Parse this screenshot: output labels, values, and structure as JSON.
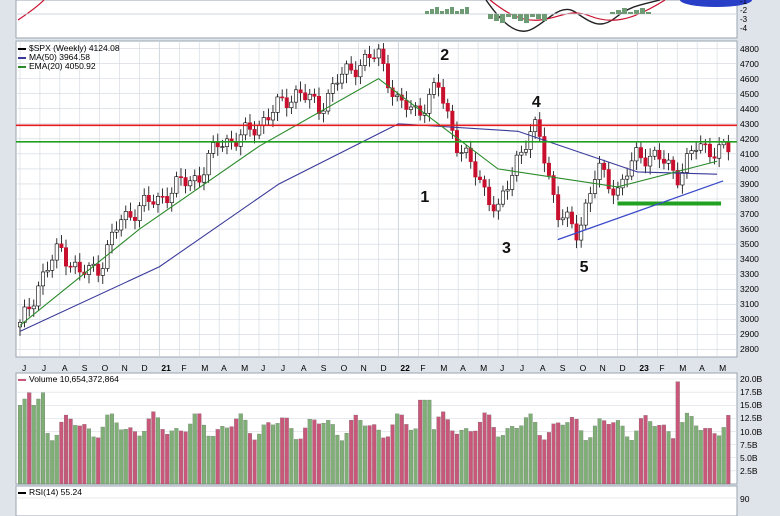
{
  "colors": {
    "background": "#dfe4ea",
    "panel": "#ffffff",
    "grid": "#cfd6de",
    "up": "#4a8a44",
    "down": "#c8102e",
    "ma50": "#3a3a9a",
    "ema20": "#2a8a2a",
    "resistance": "#e41a1c",
    "support_line": "#22a022",
    "trend_line": "#3a4ac8",
    "volume_up": "#7fae76",
    "volume_down": "#c7587a"
  },
  "price_panel": {
    "legend": {
      "symbol": "$SPX (Weekly) 4124.08",
      "ma50": "MA(50) 3964.58",
      "ema20": "EMA(20) 4050.92"
    },
    "y_ticks": [
      "4800",
      "4700",
      "4600",
      "4500",
      "4400",
      "4300",
      "4200",
      "4100",
      "4000",
      "3900",
      "3800",
      "3700",
      "3600",
      "3500",
      "3400",
      "3300",
      "3200",
      "3100",
      "3000",
      "2900",
      "2800"
    ],
    "wave_labels": [
      "1",
      "2",
      "3",
      "4",
      "5"
    ]
  },
  "x_axis": {
    "ticks": [
      {
        "label": "J",
        "year": false
      },
      {
        "label": "J",
        "year": false
      },
      {
        "label": "A",
        "year": false
      },
      {
        "label": "S",
        "year": false
      },
      {
        "label": "O",
        "year": false
      },
      {
        "label": "N",
        "year": false
      },
      {
        "label": "D",
        "year": false
      },
      {
        "label": "21",
        "year": true
      },
      {
        "label": "F",
        "year": false
      },
      {
        "label": "M",
        "year": false
      },
      {
        "label": "A",
        "year": false
      },
      {
        "label": "M",
        "year": false
      },
      {
        "label": "J",
        "year": false
      },
      {
        "label": "J",
        "year": false
      },
      {
        "label": "A",
        "year": false
      },
      {
        "label": "S",
        "year": false
      },
      {
        "label": "O",
        "year": false
      },
      {
        "label": "N",
        "year": false
      },
      {
        "label": "D",
        "year": false
      },
      {
        "label": "22",
        "year": true
      },
      {
        "label": "F",
        "year": false
      },
      {
        "label": "M",
        "year": false
      },
      {
        "label": "A",
        "year": false
      },
      {
        "label": "M",
        "year": false
      },
      {
        "label": "J",
        "year": false
      },
      {
        "label": "J",
        "year": false
      },
      {
        "label": "A",
        "year": false
      },
      {
        "label": "S",
        "year": false
      },
      {
        "label": "O",
        "year": false
      },
      {
        "label": "N",
        "year": false
      },
      {
        "label": "D",
        "year": false
      },
      {
        "label": "23",
        "year": true
      },
      {
        "label": "F",
        "year": false
      },
      {
        "label": "M",
        "year": false
      },
      {
        "label": "A",
        "year": false
      },
      {
        "label": "M",
        "year": false
      }
    ]
  },
  "volume_panel": {
    "legend": "Volume 10,654,372,864",
    "y_ticks": [
      "20.0B",
      "17.5B",
      "15.0B",
      "12.5B",
      "10.0B",
      "7.5B",
      "5.0B",
      "2.5B"
    ]
  },
  "rsi_panel": {
    "legend": "RSI(14) 55.24",
    "y_ticks": [
      "90"
    ]
  },
  "top_panel": {
    "y_ticks": [
      "-1",
      "-2",
      "-3",
      "-4"
    ]
  },
  "chart_data": {
    "type": "candlestick",
    "title": "$SPX (Weekly) 4124.08",
    "x_range": [
      "Jun 2020",
      "May 2023"
    ],
    "ylim": [
      2750,
      4850
    ],
    "price_path": [
      [
        "2020-06",
        2950
      ],
      [
        "2020-07",
        3250
      ],
      [
        "2020-08",
        3480
      ],
      [
        "2020-09",
        3300
      ],
      [
        "2020-10",
        3350
      ],
      [
        "2020-11",
        3650
      ],
      [
        "2020-12",
        3750
      ],
      [
        "2021-01",
        3800
      ],
      [
        "2021-02",
        3900
      ],
      [
        "2021-03",
        3950
      ],
      [
        "2021-04",
        4180
      ],
      [
        "2021-05",
        4200
      ],
      [
        "2021-06",
        4300
      ],
      [
        "2021-07",
        4420
      ],
      [
        "2021-08",
        4520
      ],
      [
        "2021-09",
        4400
      ],
      [
        "2021-10",
        4600
      ],
      [
        "2021-11",
        4700
      ],
      [
        "2021-12",
        4760
      ],
      [
        "2022-01",
        4430
      ],
      [
        "2022-02",
        4380
      ],
      [
        "2022-03",
        4550
      ],
      [
        "2022-04",
        4150
      ],
      [
        "2022-05",
        3950
      ],
      [
        "2022-06",
        3700
      ],
      [
        "2022-07",
        4100
      ],
      [
        "2022-08",
        4280
      ],
      [
        "2022-09",
        3700
      ],
      [
        "2022-10",
        3580
      ],
      [
        "2022-11",
        4000
      ],
      [
        "2022-12",
        3850
      ],
      [
        "2023-01",
        4100
      ],
      [
        "2023-02",
        4080
      ],
      [
        "2023-03",
        3960
      ],
      [
        "2023-04",
        4150
      ],
      [
        "2023-05",
        4124
      ]
    ],
    "ma50_path": [
      [
        "2020-06",
        2920
      ],
      [
        "2021-01",
        3350
      ],
      [
        "2021-07",
        3900
      ],
      [
        "2022-01",
        4300
      ],
      [
        "2022-07",
        4250
      ],
      [
        "2023-01",
        3980
      ],
      [
        "2023-05",
        3964.58
      ]
    ],
    "ema20_path": [
      [
        "2020-06",
        2960
      ],
      [
        "2020-12",
        3600
      ],
      [
        "2021-06",
        4150
      ],
      [
        "2021-12",
        4600
      ],
      [
        "2022-06",
        4000
      ],
      [
        "2022-12",
        3880
      ],
      [
        "2023-05",
        4050.92
      ]
    ],
    "horizontal_lines": [
      {
        "value": 4290,
        "color": "red"
      },
      {
        "value": 4180,
        "color": "green"
      },
      {
        "value": 3770,
        "color": "green",
        "start": "2022-12",
        "end": "2023-05"
      }
    ],
    "trend_line": [
      [
        "2022-09",
        3530
      ],
      [
        "2023-05",
        3920
      ]
    ],
    "wave_points": [
      {
        "label": "1",
        "date": "2022-02",
        "value": 3985
      },
      {
        "label": "2",
        "date": "2022-03",
        "value": 4637
      },
      {
        "label": "3",
        "date": "2022-06",
        "value": 3637
      },
      {
        "label": "4",
        "date": "2022-08",
        "value": 4325
      },
      {
        "label": "5",
        "date": "2022-10",
        "value": 3491
      }
    ],
    "volume_range_billion": [
      0,
      20
    ]
  }
}
